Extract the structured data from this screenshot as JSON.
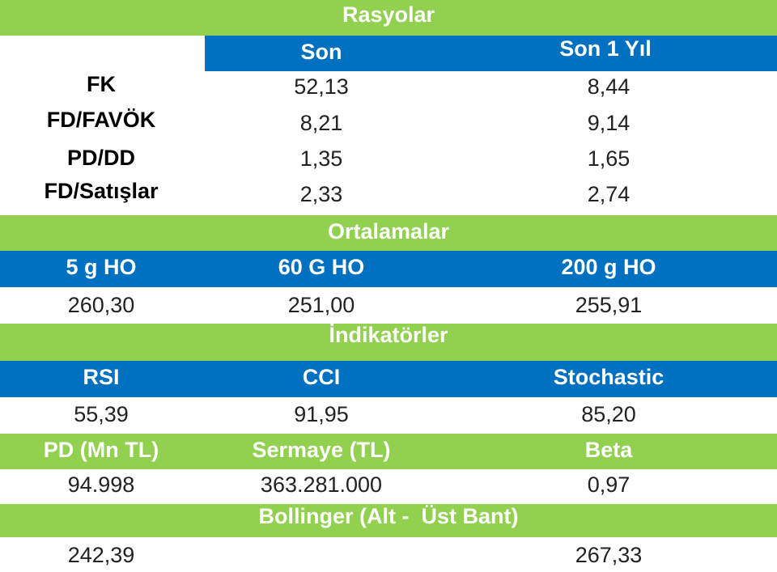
{
  "ratios": {
    "title": "Rasyolar",
    "columns": [
      "Son",
      "Son 1 Yıl"
    ],
    "rows": [
      [
        "FK",
        "52,13",
        "8,44"
      ],
      [
        "FD/FAVÖK",
        "8,21",
        "9,14"
      ],
      [
        "PD/DD",
        "1,35",
        "1,65"
      ],
      [
        "FD/Satışlar",
        "2,33",
        "2,74"
      ]
    ]
  },
  "averages": {
    "title": "Ortalamalar",
    "columns": [
      "5 g HO",
      "60 G HO",
      "200 g HO"
    ],
    "values": [
      "260,30",
      "251,00",
      "255,91"
    ]
  },
  "indicators": {
    "title": "İndikatörler",
    "columns": [
      "RSI",
      "CCI",
      "Stochastic"
    ],
    "values": [
      "55,39",
      "91,95",
      "85,20"
    ]
  },
  "market": {
    "columns": [
      "PD (Mn TL)",
      "Sermaye (TL)",
      "Beta"
    ],
    "values": [
      "94.998",
      "363.281.000",
      "0,97"
    ]
  },
  "bollinger": {
    "title": "Bollinger (Alt -  Üst Bant)",
    "values": [
      "242,39",
      "267,33"
    ]
  }
}
